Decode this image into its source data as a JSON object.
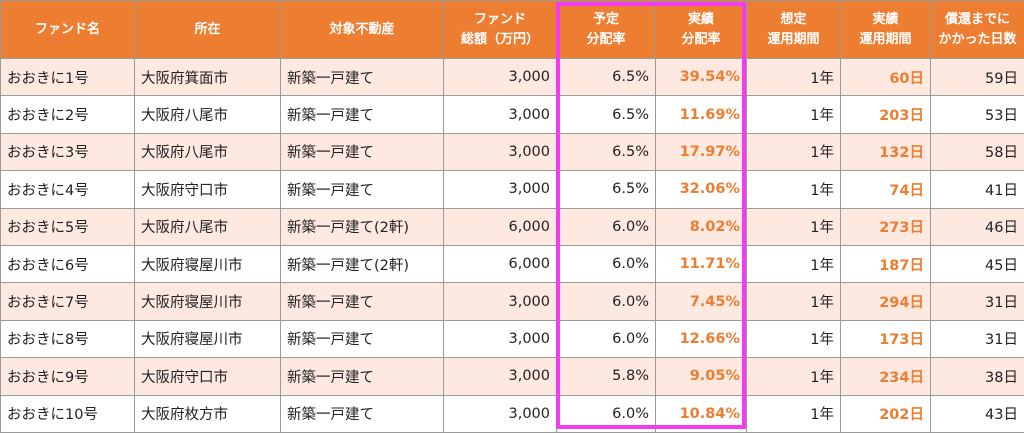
{
  "colors": {
    "header_bg": "#ed7d31",
    "header_text": "#ffffff",
    "row_alt_bg": "#fde9df",
    "accent_text": "#ed7d31",
    "highlight_border": "#f23cf0"
  },
  "table": {
    "headers": [
      [
        "ファンド名"
      ],
      [
        "所在"
      ],
      [
        "対象不動産"
      ],
      [
        "ファンド",
        "総額（万円）"
      ],
      [
        "予定",
        "分配率"
      ],
      [
        "実績",
        "分配率"
      ],
      [
        "想定",
        "運用期間"
      ],
      [
        "実績",
        "運用期間"
      ],
      [
        "償還までに",
        "かかった日数"
      ]
    ],
    "rows": [
      [
        "おおきに1号",
        "大阪府箕面市",
        "新築一戸建て",
        "3,000",
        "6.5%",
        "39.54%",
        "1年",
        "60日",
        "59日"
      ],
      [
        "おおきに2号",
        "大阪府八尾市",
        "新築一戸建て",
        "3,000",
        "6.5%",
        "11.69%",
        "1年",
        "203日",
        "53日"
      ],
      [
        "おおきに3号",
        "大阪府八尾市",
        "新築一戸建て",
        "3,000",
        "6.5%",
        "17.97%",
        "1年",
        "132日",
        "58日"
      ],
      [
        "おおきに4号",
        "大阪府守口市",
        "新築一戸建て",
        "3,000",
        "6.5%",
        "32.06%",
        "1年",
        "74日",
        "41日"
      ],
      [
        "おおきに5号",
        "大阪府八尾市",
        "新築一戸建て(2軒)",
        "6,000",
        "6.0%",
        "8.02%",
        "1年",
        "273日",
        "46日"
      ],
      [
        "おおきに6号",
        "大阪府寝屋川市",
        "新築一戸建て(2軒)",
        "6,000",
        "6.0%",
        "11.71%",
        "1年",
        "187日",
        "45日"
      ],
      [
        "おおきに7号",
        "大阪府寝屋川市",
        "新築一戸建て",
        "3,000",
        "6.0%",
        "7.45%",
        "1年",
        "294日",
        "31日"
      ],
      [
        "おおきに8号",
        "大阪府寝屋川市",
        "新築一戸建て",
        "3,000",
        "6.0%",
        "12.66%",
        "1年",
        "173日",
        "31日"
      ],
      [
        "おおきに9号",
        "大阪府守口市",
        "新築一戸建て",
        "3,000",
        "5.8%",
        "9.05%",
        "1年",
        "234日",
        "38日"
      ],
      [
        "おおきに10号",
        "大阪府枚方市",
        "新築一戸建て",
        "3,000",
        "6.0%",
        "10.84%",
        "1年",
        "202日",
        "43日"
      ]
    ]
  }
}
